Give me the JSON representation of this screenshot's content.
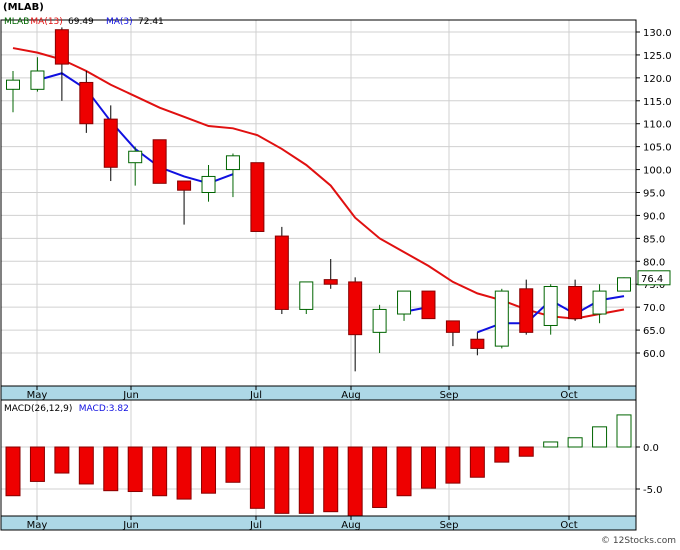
{
  "title": "(MLAB)",
  "price_panel": {
    "legend": [
      {
        "label": "MLAB",
        "value": ""
      },
      {
        "label": "MA(13)",
        "value": "69.49"
      },
      {
        "label": "MA(3)",
        "value": "72.41"
      }
    ],
    "last_price_tag": "76.4"
  },
  "macd_panel": {
    "legend": [
      {
        "label": "MACD(26,12,9)",
        "value": ""
      },
      {
        "label": "MACD:",
        "value": "3.82"
      }
    ]
  },
  "watermark": "© 12Stocks.com",
  "colors": {
    "background": "#ffffff",
    "up_candle_fill": "#ffffff",
    "up_candle_stroke": "#006400",
    "down_candle_fill": "#ee0000",
    "down_candle_stroke": "#880000",
    "ma13": "#e01010",
    "ma3": "#1010e0",
    "axis_band": "#add8e6",
    "grid": "#d0d0d0",
    "macd_pos": "#006400",
    "macd_neg": "#ee0000",
    "tag_border": "#006400"
  },
  "chart_data": [
    {
      "type": "candlestick",
      "title": "(MLAB)",
      "x_labels": [
        "May",
        "Jun",
        "Jul",
        "Aug",
        "Sep",
        "Oct"
      ],
      "y_ticks": [
        60,
        65,
        70,
        75,
        80,
        85,
        90,
        95,
        100,
        105,
        110,
        115,
        120,
        125,
        130
      ],
      "ylim": [
        55,
        131
      ],
      "grid": true,
      "candles": [
        {
          "o": 117.5,
          "h": 121.5,
          "l": 112.5,
          "c": 119.5
        },
        {
          "o": 117.5,
          "h": 124.5,
          "l": 117.0,
          "c": 121.5
        },
        {
          "o": 130.5,
          "h": 131.0,
          "l": 115.0,
          "c": 123.0
        },
        {
          "o": 119.0,
          "h": 121.5,
          "l": 108.0,
          "c": 110.0
        },
        {
          "o": 111.0,
          "h": 114.0,
          "l": 97.5,
          "c": 100.5
        },
        {
          "o": 101.5,
          "h": 105.0,
          "l": 96.5,
          "c": 104.0
        },
        {
          "o": 106.5,
          "h": 106.5,
          "l": 97.0,
          "c": 97.0
        },
        {
          "o": 97.5,
          "h": 97.5,
          "l": 88.0,
          "c": 95.5
        },
        {
          "o": 95.0,
          "h": 101.0,
          "l": 93.0,
          "c": 98.5
        },
        {
          "o": 100.0,
          "h": 103.5,
          "l": 94.0,
          "c": 103.0
        },
        {
          "o": 101.5,
          "h": 101.5,
          "l": 86.5,
          "c": 86.5
        },
        {
          "o": 85.5,
          "h": 87.5,
          "l": 68.5,
          "c": 69.5
        },
        {
          "o": 69.5,
          "h": 75.5,
          "l": 68.5,
          "c": 75.5
        },
        {
          "o": 76.0,
          "h": 80.5,
          "l": 74.0,
          "c": 75.0
        },
        {
          "o": 75.5,
          "h": 76.5,
          "l": 56.0,
          "c": 64.0
        },
        {
          "o": 64.5,
          "h": 70.5,
          "l": 60.0,
          "c": 69.5
        },
        {
          "o": 68.5,
          "h": 73.5,
          "l": 67.0,
          "c": 73.5
        },
        {
          "o": 73.5,
          "h": 73.5,
          "l": 67.5,
          "c": 67.5
        },
        {
          "o": 67.0,
          "h": 67.0,
          "l": 61.5,
          "c": 64.5
        },
        {
          "o": 63.0,
          "h": 64.5,
          "l": 59.5,
          "c": 61.0
        },
        {
          "o": 61.5,
          "h": 74.0,
          "l": 61.0,
          "c": 73.5
        },
        {
          "o": 74.0,
          "h": 76.0,
          "l": 64.0,
          "c": 64.5
        },
        {
          "o": 66.0,
          "h": 75.0,
          "l": 64.0,
          "c": 74.5
        },
        {
          "o": 74.5,
          "h": 76.0,
          "l": 67.0,
          "c": 67.5
        },
        {
          "o": 68.5,
          "h": 75.0,
          "l": 66.5,
          "c": 73.5
        },
        {
          "o": 73.5,
          "h": 76.5,
          "l": 73.5,
          "c": 76.4
        }
      ],
      "series": [
        {
          "name": "MA(13)",
          "values": [
            126.5,
            125.5,
            124.0,
            121.5,
            118.5,
            116.0,
            113.5,
            111.5,
            109.5,
            109.0,
            107.5,
            104.5,
            101.0,
            96.5,
            89.5,
            85.0,
            82.0,
            79.0,
            75.5,
            73.0,
            71.5,
            69.5,
            68.0,
            67.5,
            68.5,
            69.49
          ]
        },
        {
          "name": "MA(3)",
          "values": [
            null,
            119.5,
            121.0,
            117.5,
            110.5,
            104.5,
            100.5,
            98.5,
            97.0,
            99.0,
            null,
            null,
            null,
            null,
            null,
            null,
            69.0,
            70.0,
            null,
            64.5,
            66.5,
            66.5,
            71.5,
            68.5,
            71.5,
            72.41
          ]
        }
      ]
    },
    {
      "type": "bar",
      "title": "MACD(26,12,9)",
      "x_labels": [
        "May",
        "Jun",
        "Jul",
        "Aug",
        "Sep",
        "Oct"
      ],
      "y_ticks": [
        0.0,
        -5.0
      ],
      "ylim": [
        -8.5,
        5.0
      ],
      "series": [
        {
          "name": "MACD",
          "values": [
            -5.8,
            -4.1,
            -3.1,
            -4.4,
            -5.2,
            -5.3,
            -5.8,
            -6.2,
            -5.5,
            -4.2,
            -7.3,
            -7.9,
            -7.9,
            -7.7,
            -8.5,
            -7.2,
            -5.8,
            -4.9,
            -4.3,
            -3.6,
            -1.8,
            -1.1,
            0.6,
            1.1,
            2.4,
            3.82
          ]
        }
      ]
    }
  ]
}
